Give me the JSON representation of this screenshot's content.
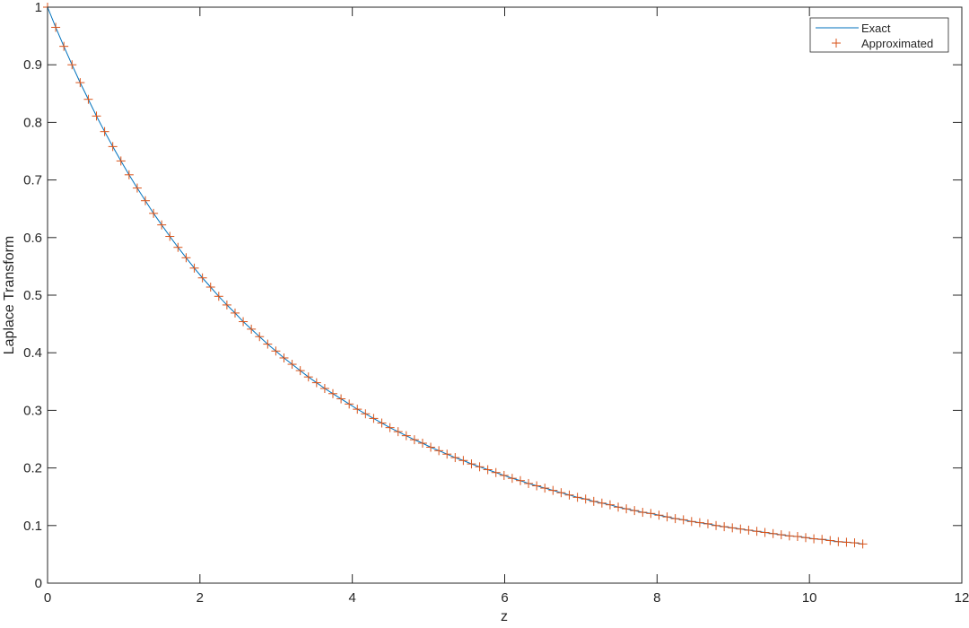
{
  "chart_data": {
    "type": "line",
    "title": "",
    "xlabel": "z",
    "ylabel": "Laplace Transform",
    "xlim": [
      0,
      12
    ],
    "ylim": [
      0,
      1
    ],
    "xticks": [
      0,
      2,
      4,
      6,
      8,
      10,
      12
    ],
    "yticks": [
      0,
      0.1,
      0.2,
      0.3,
      0.4,
      0.5,
      0.6,
      0.7,
      0.8,
      0.9,
      1
    ],
    "xtick_labels": [
      "0",
      "2",
      "4",
      "6",
      "8",
      "10",
      "12"
    ],
    "ytick_labels": [
      "0",
      "0.1",
      "0.2",
      "0.3",
      "0.4",
      "0.5",
      "0.6",
      "0.7",
      "0.8",
      "0.9",
      "1"
    ],
    "grid": false,
    "legend_position": "top-right",
    "x": [
      0,
      0.107,
      0.214,
      0.321,
      0.428,
      0.535,
      0.642,
      0.749,
      0.856,
      0.963,
      1.07,
      1.177,
      1.284,
      1.391,
      1.498,
      1.605,
      1.712,
      1.819,
      1.926,
      2.033,
      2.14,
      2.247,
      2.354,
      2.461,
      2.568,
      2.675,
      2.782,
      2.889,
      2.996,
      3.103,
      3.21,
      3.317,
      3.424,
      3.531,
      3.638,
      3.745,
      3.852,
      3.959,
      4.066,
      4.173,
      4.28,
      4.387,
      4.494,
      4.601,
      4.708,
      4.815,
      4.922,
      5.029,
      5.136,
      5.243,
      5.35,
      5.457,
      5.564,
      5.671,
      5.778,
      5.885,
      5.992,
      6.099,
      6.206,
      6.313,
      6.42,
      6.527,
      6.634,
      6.741,
      6.848,
      6.955,
      7.062,
      7.169,
      7.276,
      7.383,
      7.49,
      7.597,
      7.704,
      7.811,
      7.918,
      8.025,
      8.132,
      8.239,
      8.346,
      8.453,
      8.56,
      8.667,
      8.774,
      8.881,
      8.988,
      9.095,
      9.202,
      9.309,
      9.416,
      9.523,
      9.63,
      9.737,
      9.844,
      9.951,
      10.058,
      10.165,
      10.272,
      10.379,
      10.486,
      10.593,
      10.7
    ],
    "series": [
      {
        "name": "Exact",
        "style": "line",
        "color": "#0072BD",
        "values": [
          1,
          0.965,
          0.932,
          0.9,
          0.869,
          0.84,
          0.811,
          0.784,
          0.758,
          0.733,
          0.709,
          0.686,
          0.664,
          0.642,
          0.622,
          0.602,
          0.583,
          0.565,
          0.547,
          0.53,
          0.514,
          0.498,
          0.483,
          0.469,
          0.454,
          0.441,
          0.428,
          0.415,
          0.403,
          0.391,
          0.38,
          0.369,
          0.358,
          0.348,
          0.338,
          0.329,
          0.32,
          0.311,
          0.302,
          0.294,
          0.286,
          0.278,
          0.27,
          0.263,
          0.256,
          0.249,
          0.243,
          0.236,
          0.23,
          0.224,
          0.218,
          0.213,
          0.207,
          0.202,
          0.197,
          0.192,
          0.187,
          0.182,
          0.178,
          0.173,
          0.169,
          0.165,
          0.161,
          0.157,
          0.153,
          0.149,
          0.146,
          0.142,
          0.139,
          0.136,
          0.132,
          0.129,
          0.126,
          0.123,
          0.121,
          0.118,
          0.115,
          0.112,
          0.11,
          0.107,
          0.105,
          0.103,
          0.1,
          0.098,
          0.096,
          0.094,
          0.092,
          0.09,
          0.088,
          0.086,
          0.084,
          0.082,
          0.081,
          0.079,
          0.077,
          0.076,
          0.074,
          0.072,
          0.071,
          0.07,
          0.068
        ]
      },
      {
        "name": "Approximated",
        "style": "marker-plus",
        "color": "#D95319",
        "values": [
          1,
          0.965,
          0.932,
          0.9,
          0.869,
          0.84,
          0.811,
          0.784,
          0.758,
          0.733,
          0.709,
          0.686,
          0.664,
          0.642,
          0.622,
          0.602,
          0.583,
          0.565,
          0.547,
          0.53,
          0.514,
          0.498,
          0.483,
          0.469,
          0.454,
          0.441,
          0.428,
          0.415,
          0.403,
          0.391,
          0.38,
          0.369,
          0.358,
          0.348,
          0.338,
          0.329,
          0.32,
          0.311,
          0.302,
          0.294,
          0.286,
          0.278,
          0.27,
          0.263,
          0.256,
          0.249,
          0.243,
          0.236,
          0.23,
          0.224,
          0.218,
          0.213,
          0.207,
          0.202,
          0.197,
          0.192,
          0.187,
          0.182,
          0.178,
          0.173,
          0.169,
          0.165,
          0.161,
          0.157,
          0.153,
          0.149,
          0.146,
          0.142,
          0.139,
          0.136,
          0.132,
          0.129,
          0.126,
          0.123,
          0.121,
          0.118,
          0.115,
          0.112,
          0.11,
          0.107,
          0.105,
          0.103,
          0.1,
          0.098,
          0.096,
          0.094,
          0.092,
          0.09,
          0.088,
          0.086,
          0.084,
          0.082,
          0.081,
          0.079,
          0.077,
          0.076,
          0.074,
          0.072,
          0.071,
          0.07,
          0.068
        ]
      }
    ]
  }
}
